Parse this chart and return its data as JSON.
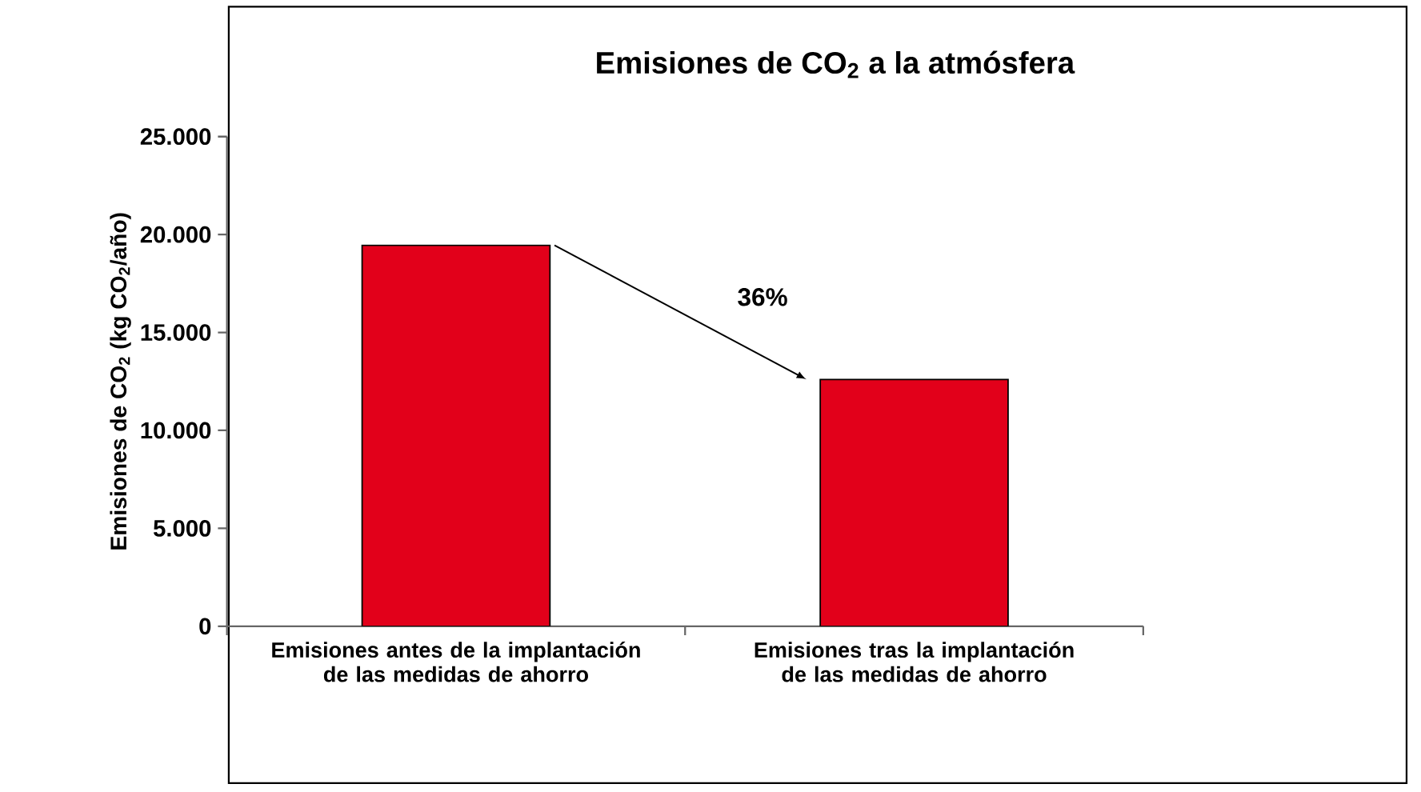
{
  "chart_data": {
    "type": "bar",
    "title": "Emisiones de CO$_{2}$ a la atmósfera",
    "ylabel": "Emisiones de CO$_{2}$ (kg CO$_{2}$/año)",
    "categories": [
      "Emisiones antes de la implantación de las medidas de ahorro",
      "Emisiones tras la implantación de las medidas de ahorro"
    ],
    "values": [
      19450,
      12600
    ],
    "color": "#e2001a",
    "ylim": [
      0,
      25000
    ],
    "yticks": [
      {
        "value": 0,
        "label": "0"
      },
      {
        "value": 5000,
        "label": "5.000"
      },
      {
        "value": 10000,
        "label": "10.000"
      },
      {
        "value": 15000,
        "label": "15.000"
      },
      {
        "value": 20000,
        "label": "20.000"
      },
      {
        "value": 25000,
        "label": "25.000"
      }
    ],
    "annotations": [
      "36%"
    ]
  }
}
